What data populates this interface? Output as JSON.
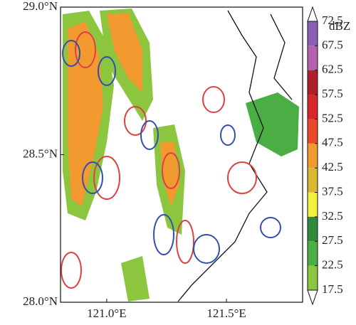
{
  "map": {
    "xlim": [
      120.807,
      121.818
    ],
    "ylim": [
      28.0,
      29.0
    ],
    "xticks": [
      {
        "value": 121.0,
        "label": "121.0°E"
      },
      {
        "value": 121.5,
        "label": "121.5°E"
      }
    ],
    "yticks": [
      {
        "value": 28.0,
        "label": "28.0°N"
      },
      {
        "value": 28.5,
        "label": "28.5°N"
      },
      {
        "value": 29.0,
        "label": "29.0°N"
      }
    ],
    "colorbar": {
      "unit": "dBZ",
      "ticks": [
        72.5,
        67.5,
        62.5,
        57.5,
        52.5,
        47.5,
        42.5,
        37.5,
        32.5,
        27.5,
        22.5,
        17.5
      ],
      "colors": [
        "#8a5fb8",
        "#b660b0",
        "#b0202a",
        "#d8262b",
        "#ea4a2a",
        "#f29a30",
        "#d9b832",
        "#f2ef3f",
        "#2f8a3a",
        "#4bae45",
        "#8cc63e"
      ]
    }
  }
}
